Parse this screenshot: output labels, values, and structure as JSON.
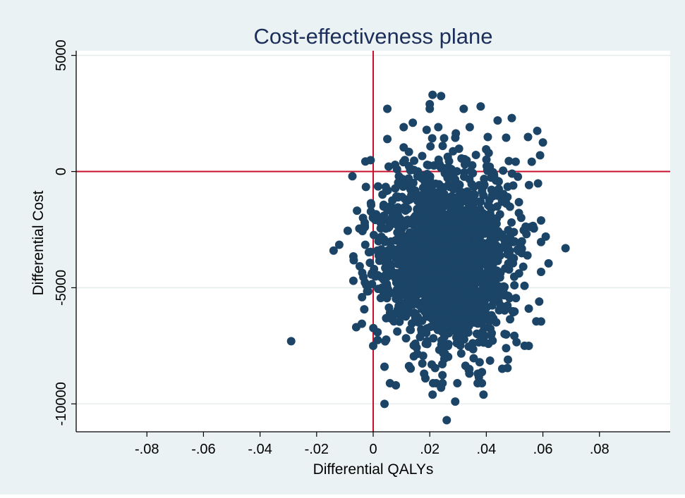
{
  "chart_data": {
    "type": "scatter",
    "title": "Cost-effectiveness plane",
    "xlabel": "Differential QALYs",
    "ylabel": "Differential Cost",
    "xlim": [
      -0.105,
      0.105
    ],
    "ylim": [
      -11200,
      5200
    ],
    "x_ticks": [
      -0.08,
      -0.06,
      -0.04,
      -0.02,
      0,
      0.02,
      0.04,
      0.06,
      0.08
    ],
    "x_tick_labels": [
      "-.08",
      "-.06",
      "-.04",
      "-.02",
      "0",
      ".02",
      ".04",
      ".06",
      ".08"
    ],
    "y_ticks": [
      -10000,
      -5000,
      0,
      5000
    ],
    "y_tick_labels": [
      "-10000",
      "-5000",
      "0",
      "5000"
    ],
    "grid": true,
    "reference_lines": {
      "x": 0,
      "y": 0
    },
    "colors": {
      "background": "#eaf2f3",
      "plot_area": "#ffffff",
      "marker": "#1b4466",
      "reference_line": "#c8102e",
      "grid": "#e4ecee",
      "text": "#000000",
      "title": "#1c2e5a"
    },
    "outlier_points": [
      {
        "x": -0.029,
        "y": -7300
      },
      {
        "x": -0.014,
        "y": -3400
      },
      {
        "x": -0.012,
        "y": -3150
      },
      {
        "x": -0.009,
        "y": -2550
      },
      {
        "x": -0.007,
        "y": -4700
      },
      {
        "x": -0.007,
        "y": -3650
      },
      {
        "x": -0.006,
        "y": -6700
      },
      {
        "x": -0.004,
        "y": -6550
      },
      {
        "x": -0.003,
        "y": -2200
      },
      {
        "x": 0.0,
        "y": -7500
      },
      {
        "x": 0.004,
        "y": -8400
      },
      {
        "x": 0.004,
        "y": -10000
      },
      {
        "x": 0.005,
        "y": 2700
      },
      {
        "x": 0.005,
        "y": 1400
      },
      {
        "x": 0.008,
        "y": -9200
      },
      {
        "x": 0.014,
        "y": 2100
      },
      {
        "x": 0.021,
        "y": 3300
      },
      {
        "x": 0.024,
        "y": 3250
      },
      {
        "x": 0.02,
        "y": 2900
      },
      {
        "x": 0.02,
        "y": 2700
      },
      {
        "x": 0.032,
        "y": 2700
      },
      {
        "x": 0.038,
        "y": 2800
      },
      {
        "x": 0.049,
        "y": 2300
      },
      {
        "x": 0.044,
        "y": 2200
      },
      {
        "x": 0.058,
        "y": 1750
      },
      {
        "x": 0.06,
        "y": 1250
      },
      {
        "x": 0.059,
        "y": 700
      },
      {
        "x": 0.068,
        "y": -3300
      },
      {
        "x": 0.062,
        "y": -3950
      },
      {
        "x": 0.061,
        "y": -2800
      },
      {
        "x": 0.055,
        "y": -7500
      },
      {
        "x": 0.055,
        "y": -5900
      },
      {
        "x": 0.047,
        "y": -7600
      },
      {
        "x": 0.039,
        "y": -9600
      },
      {
        "x": 0.029,
        "y": -9900
      },
      {
        "x": 0.026,
        "y": -10700
      },
      {
        "x": 0.021,
        "y": -9600
      },
      {
        "x": 0.024,
        "y": -9300
      },
      {
        "x": 0.018,
        "y": -8700
      },
      {
        "x": 0.034,
        "y": -8500
      },
      {
        "x": 0.037,
        "y": -8700
      }
    ],
    "cloud": {
      "description_for_generation_only": false,
      "n": 1950,
      "x_mean": 0.026,
      "x_sd": 0.0115,
      "y_mean": -3600,
      "y_sd": 1900,
      "seed": 17
    }
  }
}
